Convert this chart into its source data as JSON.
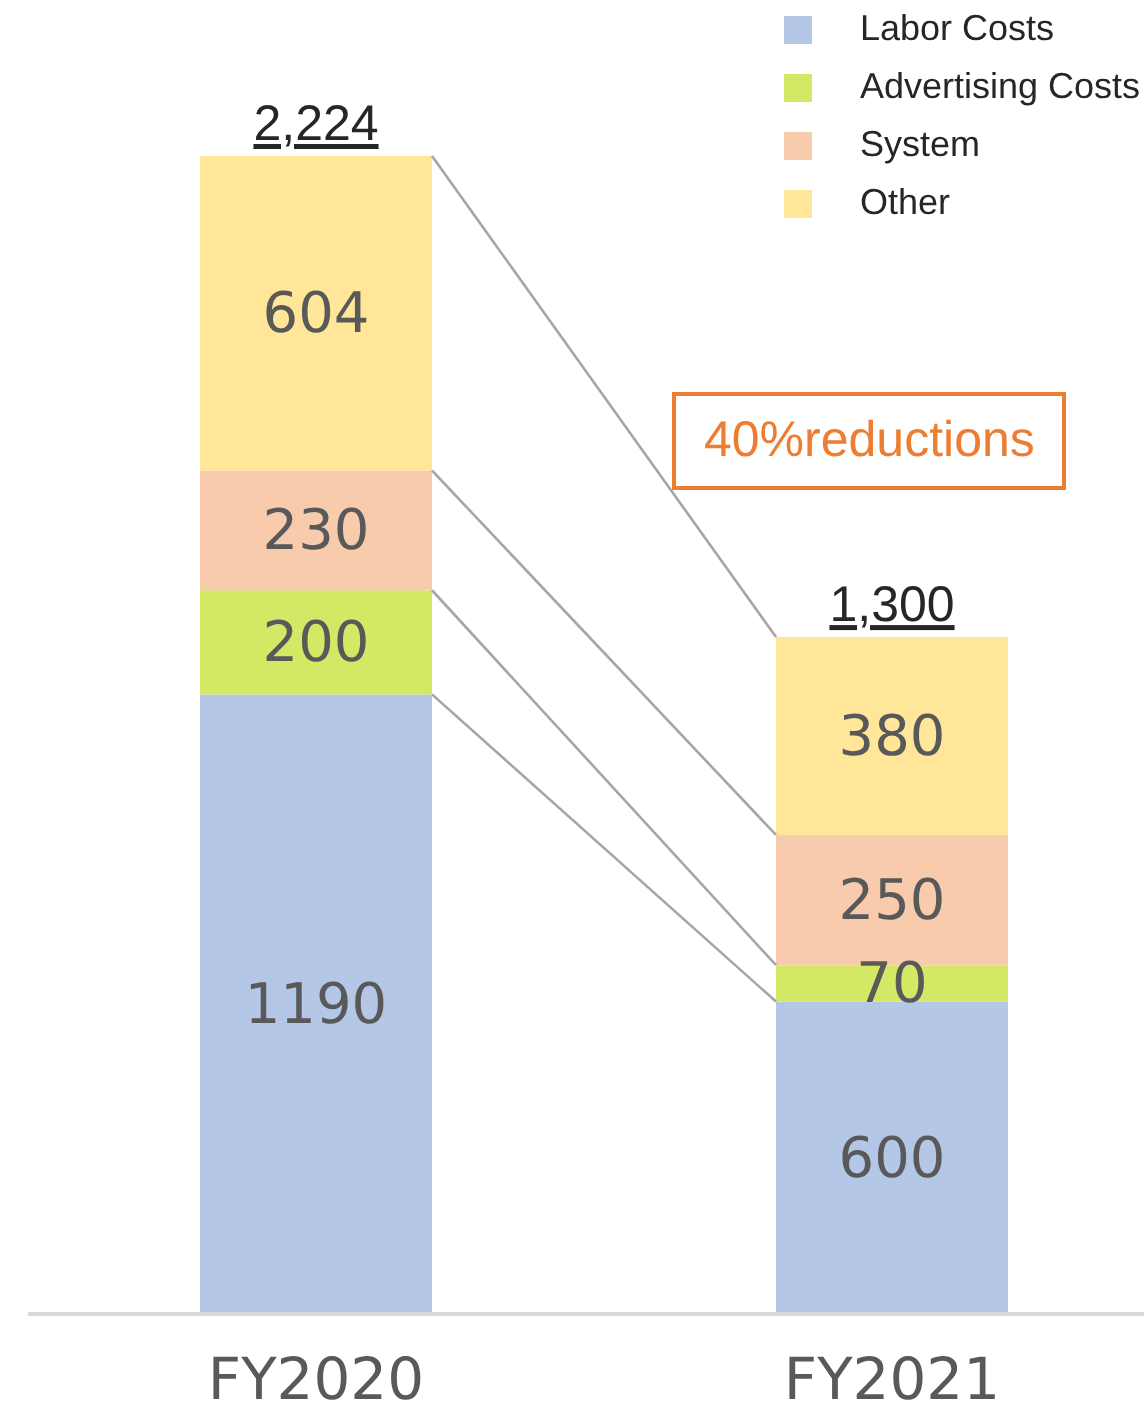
{
  "chart_data": {
    "type": "bar",
    "stacked": true,
    "categories": [
      "FY2020",
      "FY2021"
    ],
    "series": [
      {
        "name": "Labor Costs",
        "color": "#b4c7e7",
        "values": [
          1190,
          600
        ]
      },
      {
        "name": "Advertising Costs",
        "color": "#d4e865",
        "values": [
          200,
          70
        ]
      },
      {
        "name": "System",
        "color": "#f8cbad",
        "values": [
          230,
          250
        ]
      },
      {
        "name": "Other",
        "color": "#ffe699",
        "values": [
          604,
          380
        ]
      }
    ],
    "data_labels": true,
    "totals": [
      "2,224",
      "1,300"
    ],
    "legend": "top right",
    "annotations": [
      "40%reductions"
    ]
  }
}
